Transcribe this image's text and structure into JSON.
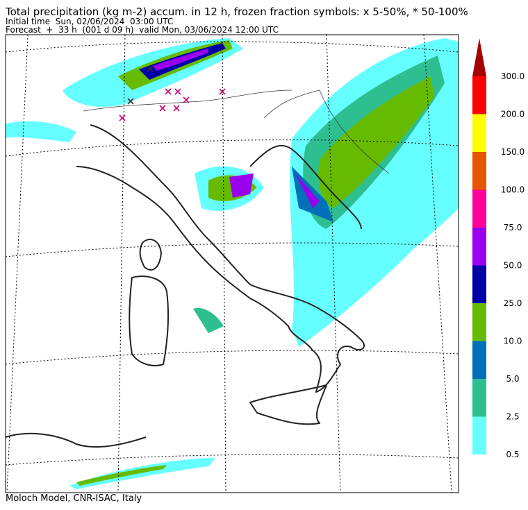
{
  "title": "Total precipitation (kg m-2) accum. in 12 h, frozen fraction symbols: x 5-50%, * 50-100%",
  "initial_time": "Initial time  Sun, 02/06/2024  03:00 UTC",
  "forecast": "Forecast  +  33 h  (001 d 09 h)  valid Mon, 03/06/2024 12:00 UTC",
  "credit": "Moloch Model, CNR-ISAC, Italy",
  "colorbar": {
    "levels": [
      {
        "value": 0.5,
        "label": "0.5"
      },
      {
        "value": 2.5,
        "label": "2.5"
      },
      {
        "value": 5,
        "label": "5.0"
      },
      {
        "value": 10,
        "label": "10.0"
      },
      {
        "value": 25,
        "label": "25.0"
      },
      {
        "value": 50,
        "label": "50.0"
      },
      {
        "value": 75,
        "label": "75.0"
      },
      {
        "value": 100,
        "label": "100.0"
      },
      {
        "value": 150,
        "label": "150.0"
      },
      {
        "value": 200,
        "label": "200.0"
      },
      {
        "value": 300,
        "label": "300.0"
      }
    ],
    "colors": [
      "#66ffff",
      "#2ebf91",
      "#0070b8",
      "#66bb00",
      "#0000a6",
      "#9900ee",
      "#ff0099",
      "#e65500",
      "#ffff00",
      "#ff0000",
      "#a60000"
    ]
  }
}
